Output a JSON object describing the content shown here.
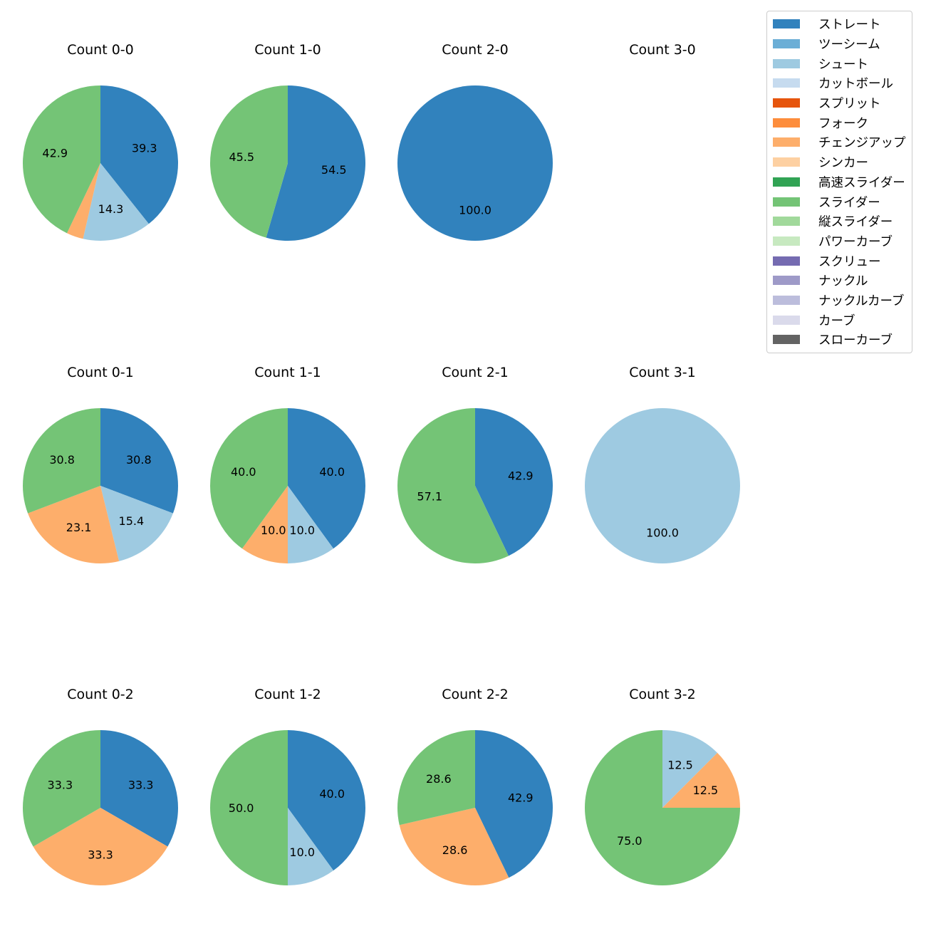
{
  "chart_data": {
    "type": "pie",
    "pitch_types": [
      {
        "name": "ストレート",
        "color": "#3182bd"
      },
      {
        "name": "ツーシーム",
        "color": "#6baed6"
      },
      {
        "name": "シュート",
        "color": "#9ecae1"
      },
      {
        "name": "カットボール",
        "color": "#c6dbef"
      },
      {
        "name": "スプリット",
        "color": "#e6550d"
      },
      {
        "name": "フォーク",
        "color": "#fd8d3c"
      },
      {
        "name": "チェンジアップ",
        "color": "#fdae6b"
      },
      {
        "name": "シンカー",
        "color": "#fdd0a2"
      },
      {
        "name": "高速スライダー",
        "color": "#31a354"
      },
      {
        "name": "スライダー",
        "color": "#74c476"
      },
      {
        "name": "縦スライダー",
        "color": "#a1d99b"
      },
      {
        "name": "パワーカーブ",
        "color": "#c7e9c0"
      },
      {
        "name": "スクリュー",
        "color": "#756bb1"
      },
      {
        "name": "ナックル",
        "color": "#9e9ac8"
      },
      {
        "name": "ナックルカーブ",
        "color": "#bcbddc"
      },
      {
        "name": "カーブ",
        "color": "#dadaeb"
      },
      {
        "name": "スローカーブ",
        "color": "#636363"
      }
    ],
    "charts": [
      {
        "title": "Count 0-0",
        "slices": [
          {
            "pitch": "ストレート",
            "value": 39.3,
            "label": "39.3"
          },
          {
            "pitch": "シュート",
            "value": 14.3,
            "label": "14.3"
          },
          {
            "pitch": "チェンジアップ",
            "value": 3.5,
            "label": ""
          },
          {
            "pitch": "スライダー",
            "value": 42.9,
            "label": "42.9"
          }
        ]
      },
      {
        "title": "Count 1-0",
        "slices": [
          {
            "pitch": "ストレート",
            "value": 54.5,
            "label": "54.5"
          },
          {
            "pitch": "スライダー",
            "value": 45.5,
            "label": "45.5"
          }
        ]
      },
      {
        "title": "Count 2-0",
        "slices": [
          {
            "pitch": "ストレート",
            "value": 100.0,
            "label": "100.0"
          }
        ]
      },
      {
        "title": "Count 3-0",
        "slices": []
      },
      {
        "title": "Count 0-1",
        "slices": [
          {
            "pitch": "ストレート",
            "value": 30.8,
            "label": "30.8"
          },
          {
            "pitch": "シュート",
            "value": 15.4,
            "label": "15.4"
          },
          {
            "pitch": "チェンジアップ",
            "value": 23.1,
            "label": "23.1"
          },
          {
            "pitch": "スライダー",
            "value": 30.8,
            "label": "30.8"
          }
        ]
      },
      {
        "title": "Count 1-1",
        "slices": [
          {
            "pitch": "ストレート",
            "value": 40.0,
            "label": "40.0"
          },
          {
            "pitch": "シュート",
            "value": 10.0,
            "label": "10.0"
          },
          {
            "pitch": "チェンジアップ",
            "value": 10.0,
            "label": "10.0"
          },
          {
            "pitch": "スライダー",
            "value": 40.0,
            "label": "40.0"
          }
        ]
      },
      {
        "title": "Count 2-1",
        "slices": [
          {
            "pitch": "ストレート",
            "value": 42.9,
            "label": "42.9"
          },
          {
            "pitch": "スライダー",
            "value": 57.1,
            "label": "57.1"
          }
        ]
      },
      {
        "title": "Count 3-1",
        "slices": [
          {
            "pitch": "シュート",
            "value": 100.0,
            "label": "100.0"
          }
        ]
      },
      {
        "title": "Count 0-2",
        "slices": [
          {
            "pitch": "ストレート",
            "value": 33.3,
            "label": "33.3"
          },
          {
            "pitch": "チェンジアップ",
            "value": 33.3,
            "label": "33.3"
          },
          {
            "pitch": "スライダー",
            "value": 33.3,
            "label": "33.3"
          }
        ]
      },
      {
        "title": "Count 1-2",
        "slices": [
          {
            "pitch": "ストレート",
            "value": 40.0,
            "label": "40.0"
          },
          {
            "pitch": "シュート",
            "value": 10.0,
            "label": "10.0"
          },
          {
            "pitch": "スライダー",
            "value": 50.0,
            "label": "50.0"
          }
        ]
      },
      {
        "title": "Count 2-2",
        "slices": [
          {
            "pitch": "ストレート",
            "value": 42.9,
            "label": "42.9"
          },
          {
            "pitch": "チェンジアップ",
            "value": 28.6,
            "label": "28.6"
          },
          {
            "pitch": "スライダー",
            "value": 28.6,
            "label": "28.6"
          }
        ]
      },
      {
        "title": "Count 3-2",
        "slices": [
          {
            "pitch": "シュート",
            "value": 12.5,
            "label": "12.5"
          },
          {
            "pitch": "チェンジアップ",
            "value": 12.5,
            "label": "12.5"
          },
          {
            "pitch": "スライダー",
            "value": 75.0,
            "label": "75.0"
          }
        ]
      }
    ],
    "legend_position": "top-right"
  }
}
